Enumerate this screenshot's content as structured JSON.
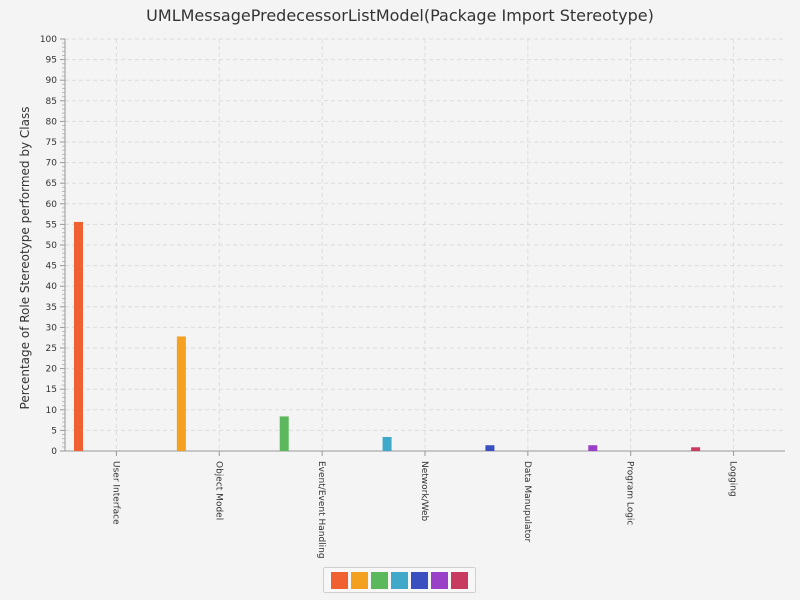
{
  "chart_data": {
    "type": "bar",
    "title": "UMLMessagePredecessorListModel(Package Import Stereotype)",
    "ylabel": "Percentage of Role Stereotype performed by Class",
    "xlabel": "",
    "ylim": [
      0,
      100
    ],
    "yticks": [
      0,
      5,
      10,
      15,
      20,
      25,
      30,
      35,
      40,
      45,
      50,
      55,
      60,
      65,
      70,
      75,
      80,
      85,
      90,
      95,
      100
    ],
    "grid": true,
    "legend": "bottom-center",
    "categories": [
      "User Interface",
      "Object Model",
      "Event/Event Handling",
      "Network/Web",
      "Data Manupulator",
      "Program Logic",
      "Logging"
    ],
    "series": [
      {
        "values": [
          55.6,
          0,
          0,
          0,
          0,
          0,
          0
        ]
      },
      {
        "values": [
          0,
          27.8,
          0,
          0,
          0,
          0,
          0
        ]
      },
      {
        "values": [
          0,
          0,
          8.4,
          0,
          0,
          0,
          0
        ]
      },
      {
        "values": [
          0,
          0,
          0,
          3.4,
          0,
          0,
          0
        ]
      },
      {
        "values": [
          0,
          0,
          0,
          0,
          1.4,
          0,
          0
        ]
      },
      {
        "values": [
          0,
          0,
          0,
          0,
          0,
          1.4,
          0
        ]
      },
      {
        "values": [
          0,
          0,
          0,
          0,
          0,
          0,
          0.9
        ]
      }
    ],
    "colors": [
      "#f06030",
      "#f4a020",
      "#5cb85c",
      "#40a8c8",
      "#3a4fc0",
      "#9a40c8",
      "#c83a60"
    ]
  }
}
